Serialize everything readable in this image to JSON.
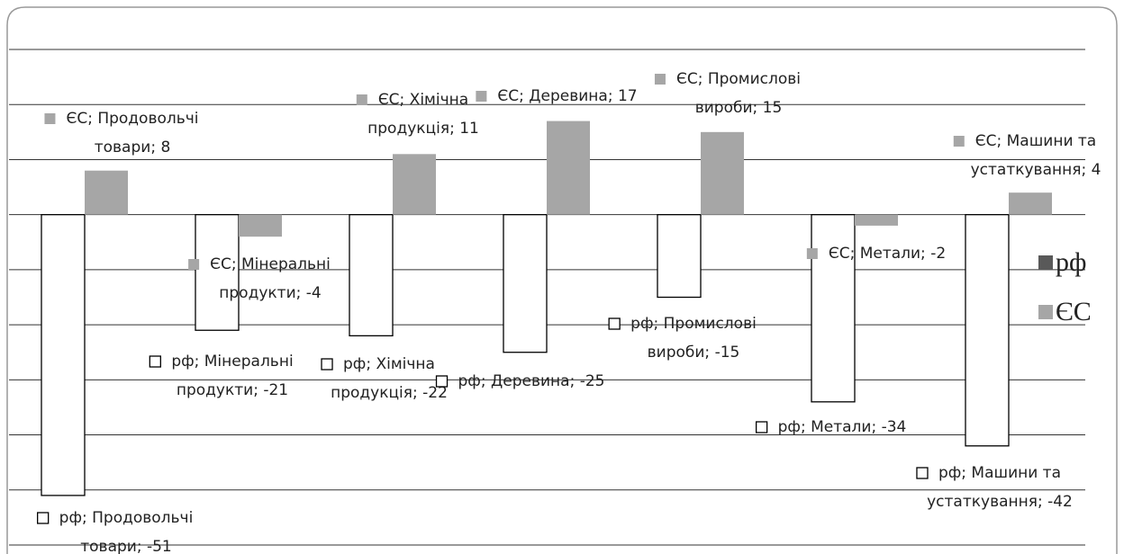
{
  "chart_data": {
    "type": "bar",
    "categories": [
      "Продовольчі товари",
      "Мінеральні продукти",
      "Хімічна продукція",
      "Деревина",
      "Промислові вироби",
      "Метали",
      "Машини та устаткування"
    ],
    "series": [
      {
        "name": "рф",
        "color": "#ffffff",
        "legend_color": "#595959",
        "values": [
          -51,
          -21,
          -22,
          -25,
          -15,
          -34,
          -42
        ],
        "value_labels": [
          [
            "рф; Продовольчі",
            "товари; -51"
          ],
          [
            "рф; Мінеральні",
            "продукти; -21"
          ],
          [
            "рф; Хімічна",
            "продукція; -22"
          ],
          [
            "рф; Деревина; -25"
          ],
          [
            "рф; Промислові",
            "вироби; -15"
          ],
          [
            "рф; Метали; -34"
          ],
          [
            "рф; Машини та",
            "устаткування; -42"
          ]
        ]
      },
      {
        "name": "ЄС",
        "color": "#a6a6a6",
        "legend_color": "#a6a6a6",
        "values": [
          8,
          -4,
          11,
          17,
          15,
          -2,
          4
        ],
        "value_labels": [
          [
            "ЄС; Продовольчі",
            "товари; 8"
          ],
          [
            "ЄС; Мінеральні",
            "продукти; -4"
          ],
          [
            "ЄС; Хімічна",
            "продукція; 11"
          ],
          [
            "ЄС; Деревина; 17"
          ],
          [
            "ЄС; Промислові",
            "вироби; 15"
          ],
          [
            "ЄС; Метали; -2"
          ],
          [
            "ЄС; Машини та",
            "устаткування; 4"
          ]
        ]
      }
    ],
    "ylim": [
      -60,
      30
    ],
    "yticks": [
      -60,
      -50,
      -40,
      -30,
      -20,
      -10,
      0,
      10,
      20,
      30
    ],
    "grid": true,
    "legend": "right"
  }
}
